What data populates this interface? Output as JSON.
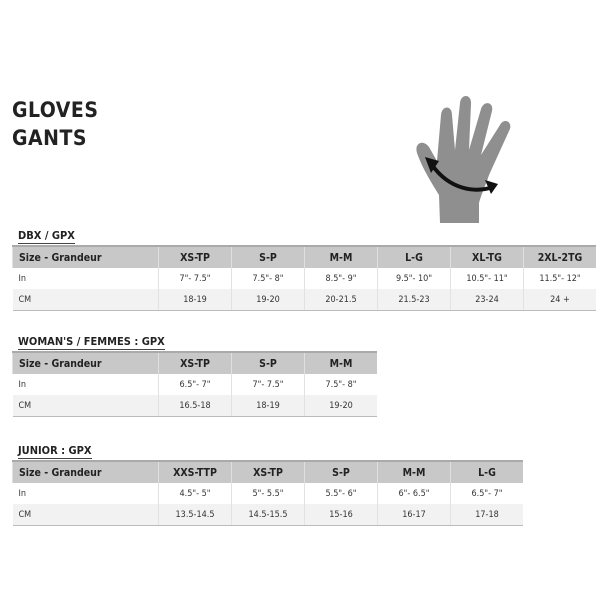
{
  "title": [
    "GLOVES",
    "GANTS"
  ],
  "icons": {
    "hand": "hand-icon",
    "arrow": "measure-arrow-icon"
  },
  "tables": [
    {
      "name": "DBX / GPX",
      "header": [
        "Size - Grandeur",
        "XS-TP",
        "S-P",
        "M-M",
        "L-G",
        "XL-TG",
        "2XL-2TG"
      ],
      "rows": [
        [
          "In",
          "7\"- 7.5\"",
          "7.5\"- 8\"",
          "8.5\"- 9\"",
          "9.5\"- 10\"",
          "10.5\"- 11\"",
          "11.5\"- 12\""
        ],
        [
          "CM",
          "18-19",
          "19-20",
          "20-21.5",
          "21.5-23",
          "23-24",
          "24 +"
        ]
      ]
    },
    {
      "name": "WOMAN'S / FEMMES : GPX",
      "header": [
        "Size - Grandeur",
        "XS-TP",
        "S-P",
        "M-M"
      ],
      "rows": [
        [
          "In",
          "6.5\"- 7\"",
          "7\"- 7.5\"",
          "7.5\"- 8\""
        ],
        [
          "CM",
          "16.5-18",
          "18-19",
          "19-20"
        ]
      ]
    },
    {
      "name": "JUNIOR : GPX",
      "header": [
        "Size - Grandeur",
        "XXS-TTP",
        "XS-TP",
        "S-P",
        "M-M",
        "L-G"
      ],
      "rows": [
        [
          "In",
          "4.5\"- 5\"",
          "5\"- 5.5\"",
          "5.5\"- 6\"",
          "6\"- 6.5\"",
          "6.5\"- 7\""
        ],
        [
          "CM",
          "13.5-14.5",
          "14.5-15.5",
          "15-16",
          "16-17",
          "17-18"
        ]
      ]
    }
  ]
}
